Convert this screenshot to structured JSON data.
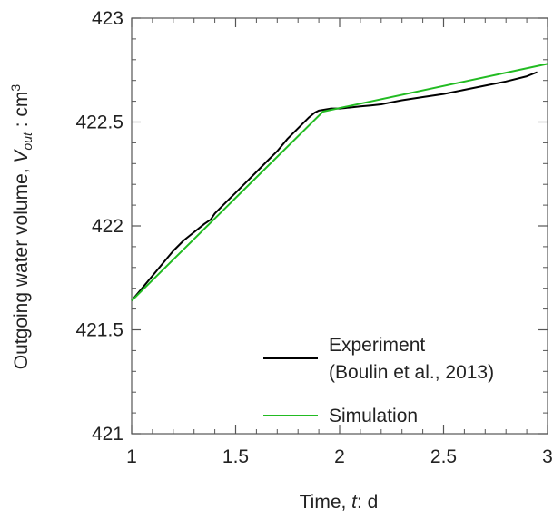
{
  "chart_data": {
    "type": "line",
    "xlabel": {
      "prefix": "Time, ",
      "var": "t",
      "suffix": ": d"
    },
    "ylabel": {
      "prefix": "Outgoing water volume, ",
      "var": "V",
      "sub": "out",
      "suffix": " : cm",
      "sup": "3"
    },
    "xlim": [
      1,
      3
    ],
    "ylim": [
      421,
      423
    ],
    "x_ticks": [
      1,
      1.5,
      2,
      2.5,
      3
    ],
    "x_tick_labels": [
      "1",
      "1.5",
      "2",
      "2.5",
      "3"
    ],
    "y_ticks": [
      421,
      421.5,
      422,
      422.5,
      423
    ],
    "y_tick_labels": [
      "421",
      "421.5",
      "422",
      "422.5",
      "423"
    ],
    "minor_per_major": 5,
    "grid": false,
    "legend_placement": "lower-right",
    "legend": [
      {
        "lines": [
          "Experiment",
          "(Boulin et al., 2013)"
        ],
        "color": "#000000"
      },
      {
        "lines": [
          "Simulation"
        ],
        "color": "#22bb22"
      }
    ],
    "series": [
      {
        "name": "Experiment (Boulin et al., 2013)",
        "color": "#000000",
        "x": [
          1.0,
          1.05,
          1.1,
          1.15,
          1.2,
          1.25,
          1.3,
          1.35,
          1.38,
          1.4,
          1.45,
          1.5,
          1.55,
          1.6,
          1.65,
          1.7,
          1.75,
          1.8,
          1.85,
          1.88,
          1.9,
          1.93,
          1.96,
          2.0,
          2.05,
          2.1,
          2.15,
          2.2,
          2.25,
          2.3,
          2.4,
          2.5,
          2.6,
          2.7,
          2.8,
          2.9,
          2.95
        ],
        "y": [
          421.64,
          421.7,
          421.76,
          421.82,
          421.88,
          421.93,
          421.97,
          422.01,
          422.03,
          422.06,
          422.11,
          422.16,
          422.21,
          422.26,
          422.31,
          422.36,
          422.42,
          422.47,
          422.52,
          422.545,
          422.555,
          422.56,
          422.565,
          422.565,
          422.57,
          422.575,
          422.58,
          422.585,
          422.595,
          422.605,
          422.62,
          422.635,
          422.655,
          422.675,
          422.695,
          422.72,
          422.74
        ]
      },
      {
        "name": "Simulation",
        "color": "#22bb22",
        "x": [
          1.0,
          1.92,
          3.0
        ],
        "y": [
          421.64,
          422.55,
          422.78
        ]
      }
    ]
  }
}
